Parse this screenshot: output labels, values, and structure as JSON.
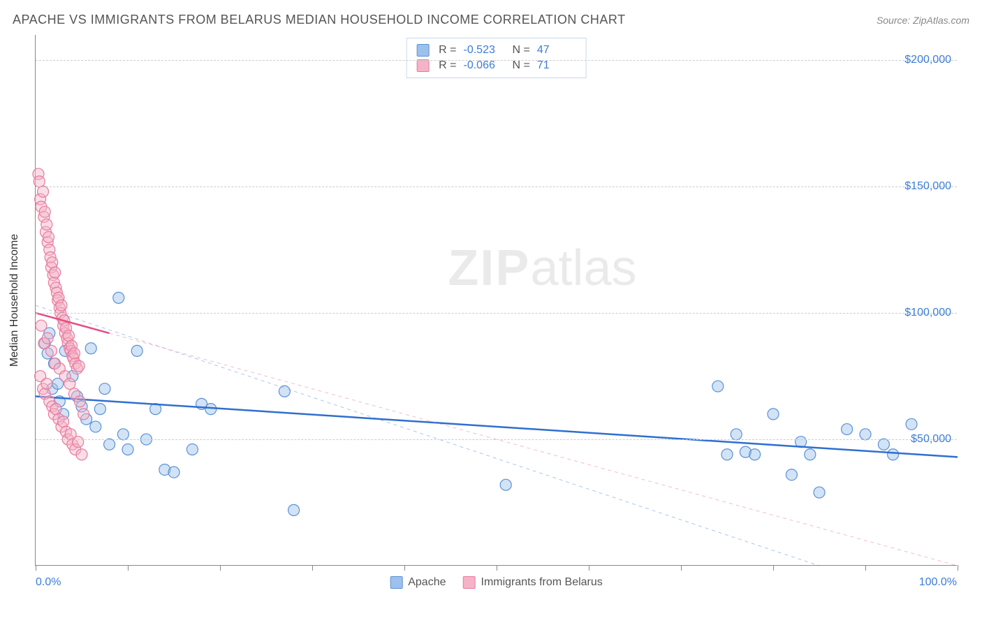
{
  "header": {
    "title": "APACHE VS IMMIGRANTS FROM BELARUS MEDIAN HOUSEHOLD INCOME CORRELATION CHART",
    "source": "Source: ZipAtlas.com"
  },
  "watermark": {
    "bold": "ZIP",
    "rest": "atlas"
  },
  "chart": {
    "type": "scatter",
    "background_color": "#ffffff",
    "grid_color": "#cccccc",
    "axis_color": "#888888",
    "y_axis_title": "Median Household Income",
    "y_axis_title_fontsize": 16,
    "xlim": [
      0,
      100
    ],
    "ylim": [
      0,
      210000
    ],
    "x_ticks": [
      0,
      10,
      20,
      30,
      40,
      50,
      60,
      70,
      80,
      90,
      100
    ],
    "x_tick_labels": {
      "min": "0.0%",
      "max": "100.0%"
    },
    "y_ticks": [
      50000,
      100000,
      150000,
      200000
    ],
    "y_tick_labels": [
      "$50,000",
      "$100,000",
      "$150,000",
      "$200,000"
    ],
    "tick_label_color": "#3b7dd8",
    "tick_label_fontsize": 16,
    "marker_radius": 8,
    "marker_fill_opacity": 0.45,
    "marker_stroke_width": 1.2,
    "series": [
      {
        "name": "Apache",
        "color_fill": "#9cc1ec",
        "color_stroke": "#5a91d6",
        "r": -0.523,
        "n": 47,
        "trend": {
          "x1": 0,
          "y1": 67000,
          "x2": 100,
          "y2": 43000,
          "stroke": "#2f6fd0",
          "width": 2.5,
          "dash": "none"
        },
        "trend_ext": {
          "x1": 0,
          "y1": 103000,
          "x2": 85,
          "y2": 0,
          "stroke": "#2f6fd0",
          "width": 1,
          "dash": "5,5",
          "opacity": 0.4
        },
        "points": [
          [
            1.0,
            88000
          ],
          [
            1.3,
            84000
          ],
          [
            1.5,
            92000
          ],
          [
            1.8,
            70000
          ],
          [
            2.0,
            80000
          ],
          [
            2.4,
            72000
          ],
          [
            2.6,
            65000
          ],
          [
            3.0,
            60000
          ],
          [
            3.2,
            85000
          ],
          [
            4.0,
            75000
          ],
          [
            4.5,
            67000
          ],
          [
            5.0,
            63000
          ],
          [
            5.5,
            58000
          ],
          [
            6.0,
            86000
          ],
          [
            6.5,
            55000
          ],
          [
            7.0,
            62000
          ],
          [
            7.5,
            70000
          ],
          [
            8.0,
            48000
          ],
          [
            9.0,
            106000
          ],
          [
            9.5,
            52000
          ],
          [
            10.0,
            46000
          ],
          [
            11.0,
            85000
          ],
          [
            12.0,
            50000
          ],
          [
            13.0,
            62000
          ],
          [
            14.0,
            38000
          ],
          [
            15.0,
            37000
          ],
          [
            17.0,
            46000
          ],
          [
            18.0,
            64000
          ],
          [
            19.0,
            62000
          ],
          [
            27.0,
            69000
          ],
          [
            28.0,
            22000
          ],
          [
            51.0,
            32000
          ],
          [
            74.0,
            71000
          ],
          [
            75.0,
            44000
          ],
          [
            76.0,
            52000
          ],
          [
            77.0,
            45000
          ],
          [
            78.0,
            44000
          ],
          [
            80.0,
            60000
          ],
          [
            82.0,
            36000
          ],
          [
            83.0,
            49000
          ],
          [
            84.0,
            44000
          ],
          [
            85.0,
            29000
          ],
          [
            88.0,
            54000
          ],
          [
            90.0,
            52000
          ],
          [
            92.0,
            48000
          ],
          [
            93.0,
            44000
          ],
          [
            95.0,
            56000
          ]
        ]
      },
      {
        "name": "Immigrants from Belarus",
        "color_fill": "#f4b3c6",
        "color_stroke": "#e77aa0",
        "r": -0.066,
        "n": 71,
        "trend": {
          "x1": 0,
          "y1": 100000,
          "x2": 8,
          "y2": 92000,
          "stroke": "#e24f82",
          "width": 2.5,
          "dash": "none"
        },
        "trend_ext": {
          "x1": 8,
          "y1": 92000,
          "x2": 100,
          "y2": 0,
          "stroke": "#e77aa0",
          "width": 1,
          "dash": "5,5",
          "opacity": 0.5
        },
        "points": [
          [
            0.3,
            155000
          ],
          [
            0.4,
            152000
          ],
          [
            0.5,
            145000
          ],
          [
            0.6,
            142000
          ],
          [
            0.8,
            148000
          ],
          [
            0.9,
            138000
          ],
          [
            1.0,
            140000
          ],
          [
            1.1,
            132000
          ],
          [
            1.2,
            135000
          ],
          [
            1.3,
            128000
          ],
          [
            1.4,
            130000
          ],
          [
            1.5,
            125000
          ],
          [
            1.6,
            122000
          ],
          [
            1.7,
            118000
          ],
          [
            1.8,
            120000
          ],
          [
            1.9,
            115000
          ],
          [
            2.0,
            112000
          ],
          [
            2.1,
            116000
          ],
          [
            2.2,
            110000
          ],
          [
            2.3,
            108000
          ],
          [
            2.4,
            105000
          ],
          [
            2.5,
            106000
          ],
          [
            2.6,
            102000
          ],
          [
            2.7,
            100000
          ],
          [
            2.8,
            103000
          ],
          [
            2.9,
            98000
          ],
          [
            3.0,
            95000
          ],
          [
            3.1,
            97000
          ],
          [
            3.2,
            92000
          ],
          [
            3.3,
            94000
          ],
          [
            3.4,
            90000
          ],
          [
            3.5,
            88000
          ],
          [
            3.6,
            91000
          ],
          [
            3.7,
            86000
          ],
          [
            3.8,
            85000
          ],
          [
            3.9,
            87000
          ],
          [
            4.0,
            83000
          ],
          [
            4.1,
            82000
          ],
          [
            4.2,
            84000
          ],
          [
            4.3,
            80000
          ],
          [
            4.5,
            78000
          ],
          [
            4.7,
            79000
          ],
          [
            0.5,
            75000
          ],
          [
            0.8,
            70000
          ],
          [
            1.0,
            68000
          ],
          [
            1.2,
            72000
          ],
          [
            1.5,
            65000
          ],
          [
            1.8,
            63000
          ],
          [
            2.0,
            60000
          ],
          [
            2.2,
            62000
          ],
          [
            2.5,
            58000
          ],
          [
            2.8,
            55000
          ],
          [
            3.0,
            57000
          ],
          [
            3.3,
            53000
          ],
          [
            3.5,
            50000
          ],
          [
            3.8,
            52000
          ],
          [
            4.0,
            48000
          ],
          [
            4.3,
            46000
          ],
          [
            4.6,
            49000
          ],
          [
            5.0,
            44000
          ],
          [
            0.6,
            95000
          ],
          [
            0.9,
            88000
          ],
          [
            1.3,
            90000
          ],
          [
            1.7,
            85000
          ],
          [
            2.1,
            80000
          ],
          [
            2.6,
            78000
          ],
          [
            3.2,
            75000
          ],
          [
            3.7,
            72000
          ],
          [
            4.2,
            68000
          ],
          [
            4.8,
            65000
          ],
          [
            5.2,
            60000
          ]
        ]
      }
    ],
    "legend_bottom": [
      {
        "label": "Apache",
        "fill": "#9cc1ec",
        "stroke": "#5a91d6"
      },
      {
        "label": "Immigrants from Belarus",
        "fill": "#f4b3c6",
        "stroke": "#e77aa0"
      }
    ]
  }
}
